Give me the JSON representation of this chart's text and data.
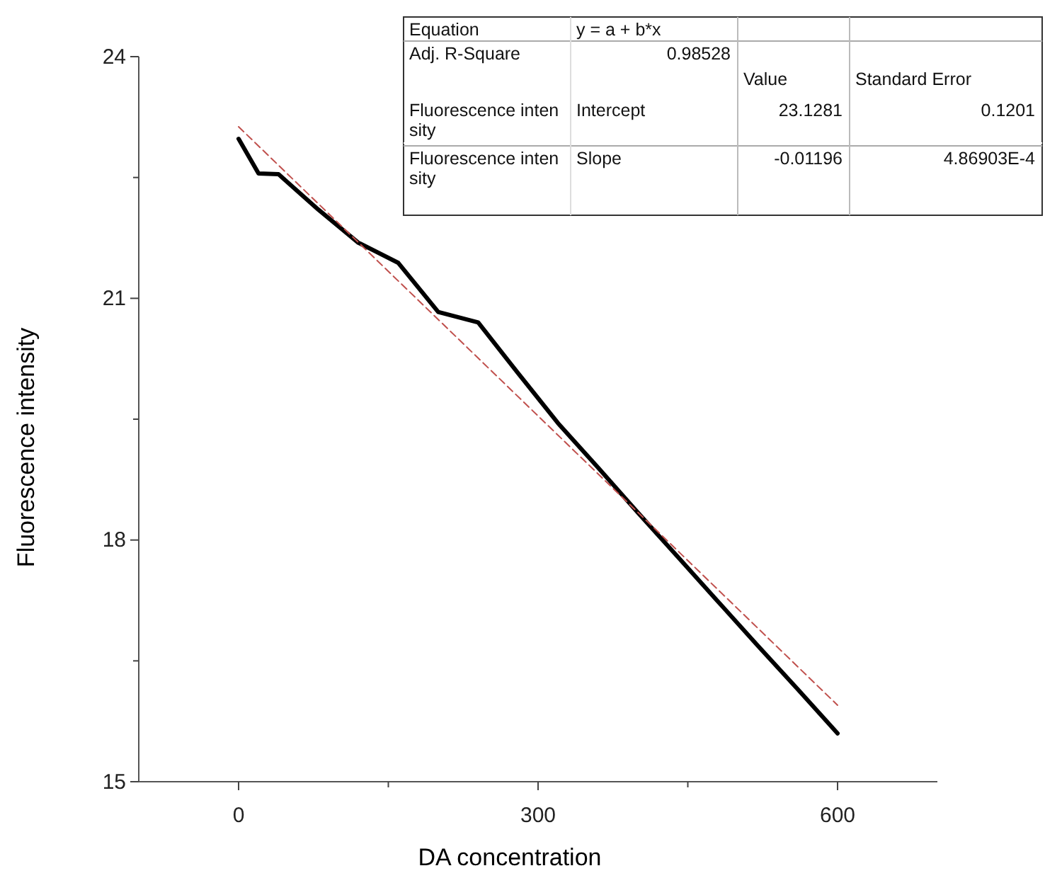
{
  "chart_data": {
    "type": "line",
    "xlabel": "DA concentration",
    "ylabel": "Fluorescence intensity",
    "xlim": [
      -100,
      700
    ],
    "xticks": [
      0,
      {
        "value": 150,
        "label": null
      },
      300,
      {
        "value": 450,
        "label": null
      },
      600
    ],
    "ylim": [
      15,
      24
    ],
    "yticks": [
      15,
      {
        "value": 16.5,
        "label": null
      },
      18,
      {
        "value": 19.5,
        "label": null
      },
      21,
      {
        "value": 22.5,
        "label": null
      },
      24
    ],
    "grid": false,
    "marker": "none",
    "line_style": "solid",
    "series": [
      {
        "color": "#000000",
        "x": [
          0,
          20,
          40,
          80,
          120,
          160,
          200,
          240,
          280,
          320,
          360,
          400,
          440,
          480,
          520,
          560,
          600
        ],
        "values": [
          22.98,
          22.55,
          22.54,
          22.1,
          21.69,
          21.44,
          20.83,
          20.7,
          20.07,
          19.45,
          18.9,
          18.34,
          17.79,
          17.24,
          16.69,
          16.15,
          15.6
        ]
      },
      {
        "type": "line",
        "color": "#c0504d",
        "line_style": "dashed",
        "x": [
          0,
          600
        ],
        "values": [
          23.13,
          15.95
        ]
      }
    ],
    "annotations": [
      "Equation",
      "y = a + b*x",
      "Adj. R-Square",
      "0.98528",
      "Value",
      "Standard Error",
      "Fluorescence intensity",
      "Intercept",
      "23.1281",
      "0.1201",
      "Fluorescence intensity",
      "Slope",
      "-0.01196",
      "4.86903E-4"
    ]
  }
}
